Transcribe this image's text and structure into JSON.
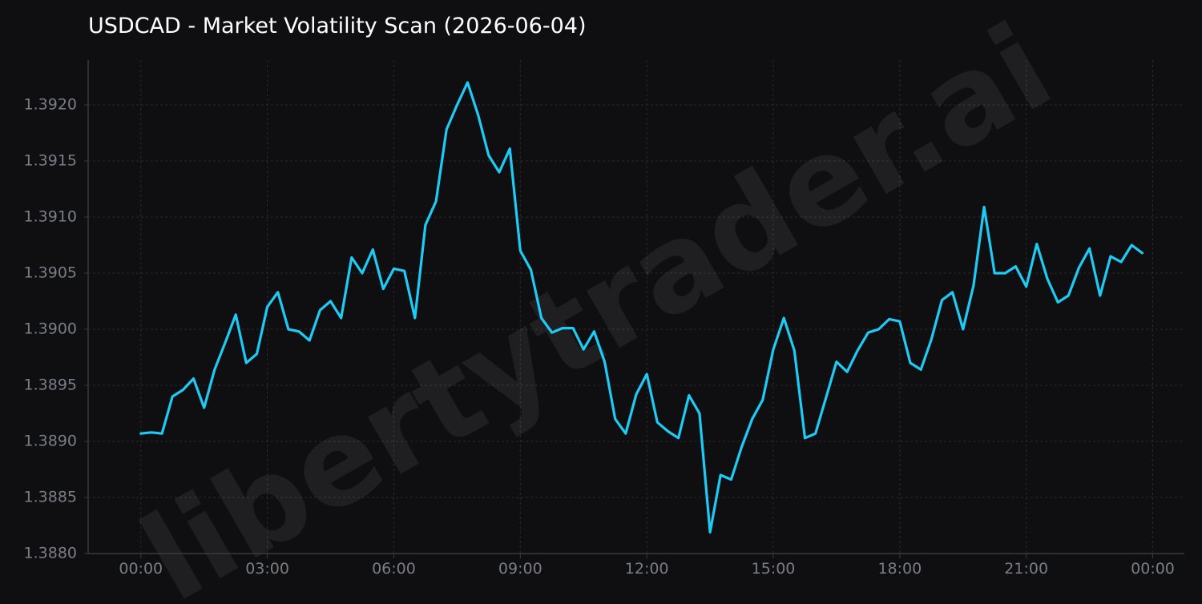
{
  "chart_data": {
    "type": "line",
    "title": "USDCAD - Market Volatility Scan (2026-06-04)",
    "watermark": "libertytrader.ai",
    "xlabel": "",
    "ylabel": "",
    "x_ticks": [
      "00:00",
      "03:00",
      "06:00",
      "09:00",
      "12:00",
      "15:00",
      "18:00",
      "21:00",
      "00:00"
    ],
    "x_range_minutes": [
      -75,
      1485
    ],
    "y_ticks": [
      "1.3880",
      "1.3885",
      "1.3890",
      "1.3895",
      "1.3900",
      "1.3905",
      "1.3910",
      "1.3915",
      "1.3920"
    ],
    "ylim": [
      1.388,
      1.3924
    ],
    "grid": true,
    "colors": {
      "background": "#0f0f12",
      "line": "#1ecbf5",
      "grid": "#2a2a2e",
      "tick_label": "#7a7d85",
      "axis": "#3a3a3e"
    },
    "series": [
      {
        "values": [
          1.38907,
          1.38908,
          1.38907,
          1.3894,
          1.38946,
          1.38956,
          1.3893,
          1.38964,
          1.38988,
          1.39013,
          1.3897,
          1.38978,
          1.3902,
          1.39033,
          1.39,
          1.38998,
          1.3899,
          1.39017,
          1.39025,
          1.3901,
          1.39064,
          1.3905,
          1.39071,
          1.39036,
          1.39054,
          1.39052,
          1.3901,
          1.39093,
          1.39114,
          1.39178,
          1.392,
          1.3922,
          1.39191,
          1.39155,
          1.3914,
          1.39161,
          1.3907,
          1.39053,
          1.3901,
          1.38997,
          1.39001,
          1.39001,
          1.38982,
          1.38998,
          1.38971,
          1.3892,
          1.38907,
          1.38942,
          1.3896,
          1.38917,
          1.38909,
          1.38903,
          1.38941,
          1.38925,
          1.38819,
          1.3887,
          1.38866,
          1.38895,
          1.3892,
          1.38937,
          1.38982,
          1.3901,
          1.38981,
          1.38903,
          1.38907,
          1.38939,
          1.38971,
          1.38962,
          1.38981,
          1.38997,
          1.39,
          1.39009,
          1.39007,
          1.3897,
          1.38964,
          1.38991,
          1.39026,
          1.39033,
          1.39,
          1.39039,
          1.39109,
          1.3905,
          1.3905,
          1.39056,
          1.39038,
          1.39076,
          1.39045,
          1.39024,
          1.3903,
          1.39055,
          1.39072,
          1.3903,
          1.39065,
          1.3906,
          1.39075,
          1.39068
        ]
      }
    ]
  }
}
